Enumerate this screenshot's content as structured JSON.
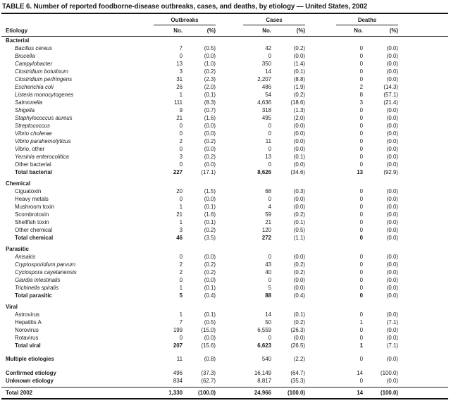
{
  "title": "TABLE 6. Number of reported foodborne-disease outbreaks, cases, and deaths, by etiology — United States, 2002",
  "header": {
    "etiology_label": "Etiology",
    "groups": [
      {
        "label": "Outbreaks",
        "no": "No.",
        "pct": "(%)"
      },
      {
        "label": "Cases",
        "no": "No.",
        "pct": "(%)"
      },
      {
        "label": "Deaths",
        "no": "No.",
        "pct": "(%)"
      }
    ]
  },
  "sections": [
    {
      "name": "Bacterial",
      "rows": [
        {
          "label": "Bacillus cereus",
          "italic": true,
          "o_no": "7",
          "o_pct": "(0.5)",
          "c_no": "42",
          "c_pct": "(0.2)",
          "d_no": "0",
          "d_pct": "(0.0)"
        },
        {
          "label": "Brucella",
          "italic": true,
          "o_no": "0",
          "o_pct": "(0.0)",
          "c_no": "0",
          "c_pct": "(0.0)",
          "d_no": "0",
          "d_pct": "(0.0)"
        },
        {
          "label": "Campylobacter",
          "italic": true,
          "o_no": "13",
          "o_pct": "(1.0)",
          "c_no": "350",
          "c_pct": "(1.4)",
          "d_no": "0",
          "d_pct": "(0.0)"
        },
        {
          "label": "Clostridium botulinum",
          "italic": true,
          "o_no": "3",
          "o_pct": "(0.2)",
          "c_no": "14",
          "c_pct": "(0.1)",
          "d_no": "0",
          "d_pct": "(0.0)"
        },
        {
          "label": "Clostridium perfringens",
          "italic": true,
          "o_no": "31",
          "o_pct": "(2.3)",
          "c_no": "2,207",
          "c_pct": "(8.8)",
          "d_no": "0",
          "d_pct": "(0.0)"
        },
        {
          "label": "Escherichia coli",
          "italic": true,
          "o_no": "26",
          "o_pct": "(2.0)",
          "c_no": "486",
          "c_pct": "(1.9)",
          "d_no": "2",
          "d_pct": "(14.3)"
        },
        {
          "label": "Listeria monocytogenes",
          "italic": true,
          "o_no": "1",
          "o_pct": "(0.1)",
          "c_no": "54",
          "c_pct": "(0.2)",
          "d_no": "8",
          "d_pct": "(57.1)"
        },
        {
          "label": "Salmonella",
          "italic": true,
          "o_no": "111",
          "o_pct": "(8.3)",
          "c_no": "4,636",
          "c_pct": "(18.6)",
          "d_no": "3",
          "d_pct": "(21.4)"
        },
        {
          "label": "Shigella",
          "italic": true,
          "o_no": "9",
          "o_pct": "(0.7)",
          "c_no": "318",
          "c_pct": "(1.3)",
          "d_no": "0",
          "d_pct": "(0.0)"
        },
        {
          "label": "Staphylococcus aureus",
          "italic": true,
          "o_no": "21",
          "o_pct": "(1.6)",
          "c_no": "495",
          "c_pct": "(2.0)",
          "d_no": "0",
          "d_pct": "(0.0)"
        },
        {
          "label": "Streptococcus",
          "italic": true,
          "o_no": "0",
          "o_pct": "(0.0)",
          "c_no": "0",
          "c_pct": "(0.0)",
          "d_no": "0",
          "d_pct": "(0.0)"
        },
        {
          "label": "Vibrio cholerae",
          "italic": true,
          "o_no": "0",
          "o_pct": "(0.0)",
          "c_no": "0",
          "c_pct": "(0.0)",
          "d_no": "0",
          "d_pct": "(0.0)"
        },
        {
          "label": "Vibrio parahemolyticus",
          "italic": true,
          "o_no": "2",
          "o_pct": "(0.2)",
          "c_no": "11",
          "c_pct": "(0.0)",
          "d_no": "0",
          "d_pct": "(0.0)"
        },
        {
          "label": "Vibrio, other",
          "italic_prefix": "Vibrio",
          "o_no": "0",
          "o_pct": "(0.0)",
          "c_no": "0",
          "c_pct": "(0.0)",
          "d_no": "0",
          "d_pct": "(0.0)"
        },
        {
          "label": "Yersinia enterocolitica",
          "italic": true,
          "o_no": "3",
          "o_pct": "(0.2)",
          "c_no": "13",
          "c_pct": "(0.1)",
          "d_no": "0",
          "d_pct": "(0.0)"
        },
        {
          "label": "Other bacterial",
          "o_no": "0",
          "o_pct": "(0.0)",
          "c_no": "0",
          "c_pct": "(0.0)",
          "d_no": "0",
          "d_pct": "(0.0)"
        }
      ],
      "total": {
        "label": "Total bacterial",
        "o_no": "227",
        "o_pct": "(17.1)",
        "c_no": "8,626",
        "c_pct": "(34.6)",
        "d_no": "13",
        "d_pct": "(92.9)"
      }
    },
    {
      "name": "Chemical",
      "rows": [
        {
          "label": "Ciguatoxin",
          "o_no": "20",
          "o_pct": "(1.5)",
          "c_no": "68",
          "c_pct": "(0.3)",
          "d_no": "0",
          "d_pct": "(0.0)"
        },
        {
          "label": "Heavy metals",
          "o_no": "0",
          "o_pct": "(0.0)",
          "c_no": "0",
          "c_pct": "(0.0)",
          "d_no": "0",
          "d_pct": "(0.0)"
        },
        {
          "label": "Mushroom toxin",
          "o_no": "1",
          "o_pct": "(0.1)",
          "c_no": "4",
          "c_pct": "(0.0)",
          "d_no": "0",
          "d_pct": "(0.0)"
        },
        {
          "label": "Scombrotoxin",
          "o_no": "21",
          "o_pct": "(1.6)",
          "c_no": "59",
          "c_pct": "(0.2)",
          "d_no": "0",
          "d_pct": "(0.0)"
        },
        {
          "label": "Shellfish toxin",
          "o_no": "1",
          "o_pct": "(0.1)",
          "c_no": "21",
          "c_pct": "(0.1)",
          "d_no": "0",
          "d_pct": "(0.0)"
        },
        {
          "label": "Other chemical",
          "o_no": "3",
          "o_pct": "(0.2)",
          "c_no": "120",
          "c_pct": "(0.5)",
          "d_no": "0",
          "d_pct": "(0.0)"
        }
      ],
      "total": {
        "label": "Total chemical",
        "o_no": "46",
        "o_pct": "(3.5)",
        "c_no": "272",
        "c_pct": "(1.1)",
        "d_no": "0",
        "d_pct": "(0.0)"
      }
    },
    {
      "name": "Parasitic",
      "rows": [
        {
          "label": "Anisakis",
          "italic": true,
          "o_no": "0",
          "o_pct": "(0.0)",
          "c_no": "0",
          "c_pct": "(0.0)",
          "d_no": "0",
          "d_pct": "(0.0)"
        },
        {
          "label": "Cryptosporidium parvum",
          "italic": true,
          "o_no": "2",
          "o_pct": "(0.2)",
          "c_no": "43",
          "c_pct": "(0.2)",
          "d_no": "0",
          "d_pct": "(0.0)"
        },
        {
          "label": "Cyclospora cayetanensis",
          "italic": true,
          "o_no": "2",
          "o_pct": "(0.2)",
          "c_no": "40",
          "c_pct": "(0.2)",
          "d_no": "0",
          "d_pct": "(0.0)"
        },
        {
          "label": "Giardia intestinalis",
          "italic": true,
          "o_no": "0",
          "o_pct": "(0.0)",
          "c_no": "0",
          "c_pct": "(0.0)",
          "d_no": "0",
          "d_pct": "(0.0)"
        },
        {
          "label": "Trichinella spiralis",
          "italic": true,
          "o_no": "1",
          "o_pct": "(0.1)",
          "c_no": "5",
          "c_pct": "(0.0)",
          "d_no": "0",
          "d_pct": "(0.0)"
        }
      ],
      "total": {
        "label": "Total parasitic",
        "o_no": "5",
        "o_pct": "(0.4)",
        "c_no": "88",
        "c_pct": "(0.4)",
        "d_no": "0",
        "d_pct": "(0.0)"
      }
    },
    {
      "name": "Viral",
      "rows": [
        {
          "label": "Astrovirus",
          "o_no": "1",
          "o_pct": "(0.1)",
          "c_no": "14",
          "c_pct": "(0.1)",
          "d_no": "0",
          "d_pct": "(0.0)"
        },
        {
          "label": "Hepatitis A",
          "o_no": "7",
          "o_pct": "(0.5)",
          "c_no": "50",
          "c_pct": "(0.2)",
          "d_no": "1",
          "d_pct": "(7.1)"
        },
        {
          "label": "Norovirus",
          "o_no": "199",
          "o_pct": "(15.0)",
          "c_no": "6,559",
          "c_pct": "(26.3)",
          "d_no": "0",
          "d_pct": "(0.0)"
        },
        {
          "label": "Rotavirus",
          "o_no": "0",
          "o_pct": "(0.0)",
          "c_no": "0",
          "c_pct": "(0.0)",
          "d_no": "0",
          "d_pct": "(0.0)"
        }
      ],
      "total": {
        "label": "Total viral",
        "o_no": "207",
        "o_pct": "(15.6)",
        "c_no": "6,623",
        "c_pct": "(26.5)",
        "d_no": "1",
        "d_pct": "(7.1)"
      }
    }
  ],
  "summary_rows": [
    {
      "label": "Multiple etiologies",
      "o_no": "11",
      "o_pct": "(0.8)",
      "c_no": "540",
      "c_pct": "(2.2)",
      "d_no": "0",
      "d_pct": "(0.0)"
    },
    {
      "label": "Confirmed etiology",
      "o_no": "496",
      "o_pct": "(37.3)",
      "c_no": "16,149",
      "c_pct": "(64.7)",
      "d_no": "14",
      "d_pct": "(100.0)"
    },
    {
      "label": "Unknown etiology",
      "o_no": "834",
      "o_pct": "(62.7)",
      "c_no": "8,817",
      "c_pct": "(35.3)",
      "d_no": "0",
      "d_pct": "(0.0)"
    }
  ],
  "grand_total": {
    "label": "Total 2002",
    "o_no": "1,330",
    "o_pct": "(100.0)",
    "c_no": "24,966",
    "c_pct": "(100.0)",
    "d_no": "14",
    "d_pct": "(100.0)"
  }
}
